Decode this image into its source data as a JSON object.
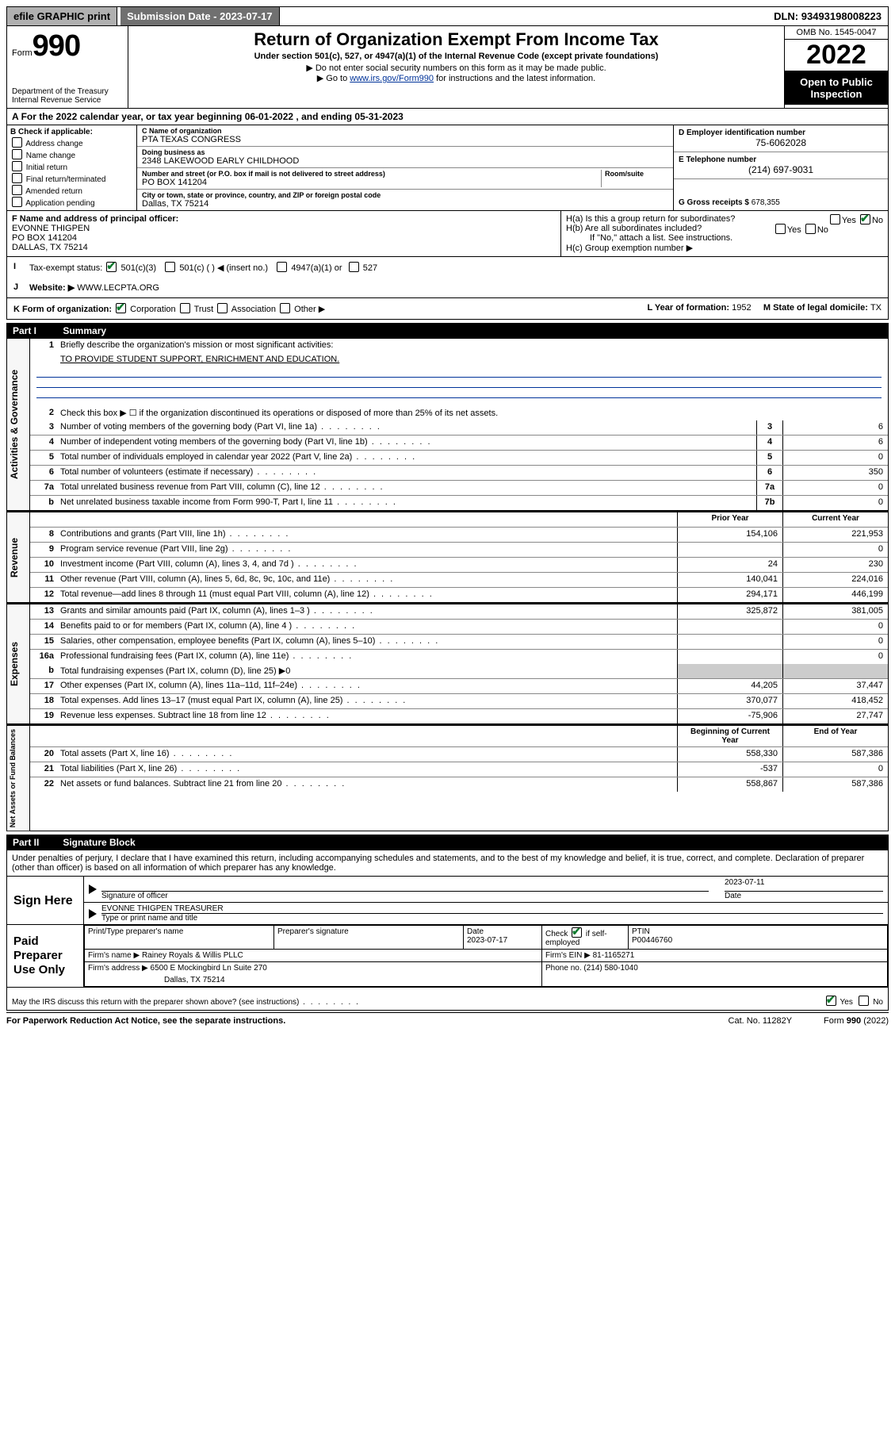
{
  "topbar": {
    "efile": "efile GRAPHIC print",
    "submission_label": "Submission Date - ",
    "submission_date": "2023-07-17",
    "dln_label": "DLN: ",
    "dln": "93493198008223"
  },
  "header": {
    "form_small": "Form",
    "form_big": "990",
    "title": "Return of Organization Exempt From Income Tax",
    "sub": "Under section 501(c), 527, or 4947(a)(1) of the Internal Revenue Code (except private foundations)",
    "info1": "▶ Do not enter social security numbers on this form as it may be made public.",
    "info2_a": "▶ Go to ",
    "info2_link": "www.irs.gov/Form990",
    "info2_b": " for instructions and the latest information.",
    "omb": "OMB No. 1545-0047",
    "year": "2022",
    "inspect": "Open to Public Inspection",
    "dept": "Department of the Treasury\nInternal Revenue Service"
  },
  "period": {
    "text_a": "For the 2022 calendar year, or tax year beginning ",
    "begin": "06-01-2022",
    "text_b": " , and ending ",
    "end": "05-31-2023"
  },
  "colB": {
    "label": "B Check if applicable:",
    "items": [
      "Address change",
      "Name change",
      "Initial return",
      "Final return/terminated",
      "Amended return",
      "Application pending"
    ]
  },
  "colC": {
    "name_lbl": "C Name of organization",
    "name": "PTA TEXAS CONGRESS",
    "dba_lbl": "Doing business as",
    "dba": "2348 LAKEWOOD EARLY CHILDHOOD",
    "street_lbl": "Number and street (or P.O. box if mail is not delivered to street address)",
    "room_lbl": "Room/suite",
    "street": "PO BOX 141204",
    "city_lbl": "City or town, state or province, country, and ZIP or foreign postal code",
    "city": "Dallas, TX  75214"
  },
  "colDE": {
    "d_lbl": "D Employer identification number",
    "d_val": "75-6062028",
    "e_lbl": "E Telephone number",
    "e_val": "(214) 697-9031",
    "g_lbl": "G Gross receipts $ ",
    "g_val": "678,355"
  },
  "rowF": {
    "lbl": "F Name and address of principal officer:",
    "name": "EVONNE THIGPEN",
    "addr1": "PO BOX 141204",
    "addr2": "DALLAS, TX  75214"
  },
  "rowH": {
    "a": "H(a)  Is this a group return for subordinates?",
    "a_yes": "Yes",
    "a_no": "No",
    "b": "H(b)  Are all subordinates included?",
    "b_yes": "Yes",
    "b_no": "No",
    "b_note": "If \"No,\" attach a list. See instructions.",
    "c": "H(c)  Group exemption number ▶"
  },
  "rowI": {
    "lbl": "Tax-exempt status:",
    "o1": "501(c)(3)",
    "o2": "501(c) (  ) ◀ (insert no.)",
    "o3": "4947(a)(1) or",
    "o4": "527"
  },
  "rowJ": {
    "lbl": "Website: ▶ ",
    "val": "WWW.LECPTA.ORG"
  },
  "rowK": {
    "lbl": "K Form of organization:",
    "o1": "Corporation",
    "o2": "Trust",
    "o3": "Association",
    "o4": "Other ▶",
    "l_lbl": "L Year of formation: ",
    "l_val": "1952",
    "m_lbl": "M State of legal domicile: ",
    "m_val": "TX"
  },
  "part1": {
    "header_part": "Part I",
    "header_title": "Summary"
  },
  "governance": {
    "side": "Activities & Governance",
    "l1": "Briefly describe the organization's mission or most significant activities:",
    "l1v": "TO PROVIDE STUDENT SUPPORT, ENRICHMENT AND EDUCATION.",
    "l2": "Check this box ▶ ☐  if the organization discontinued its operations or disposed of more than 25% of its net assets.",
    "rows": [
      {
        "n": "3",
        "d": "Number of voting members of the governing body (Part VI, line 1a)",
        "c": "3",
        "v": "6"
      },
      {
        "n": "4",
        "d": "Number of independent voting members of the governing body (Part VI, line 1b)",
        "c": "4",
        "v": "6"
      },
      {
        "n": "5",
        "d": "Total number of individuals employed in calendar year 2022 (Part V, line 2a)",
        "c": "5",
        "v": "0"
      },
      {
        "n": "6",
        "d": "Total number of volunteers (estimate if necessary)",
        "c": "6",
        "v": "350"
      },
      {
        "n": "7a",
        "d": "Total unrelated business revenue from Part VIII, column (C), line 12",
        "c": "7a",
        "v": "0"
      },
      {
        "n": "b",
        "d": "Net unrelated business taxable income from Form 990-T, Part I, line 11",
        "c": "7b",
        "v": "0"
      }
    ]
  },
  "revexp_hdr": {
    "prior": "Prior Year",
    "current": "Current Year"
  },
  "revenue": {
    "side": "Revenue",
    "rows": [
      {
        "n": "8",
        "d": "Contributions and grants (Part VIII, line 1h)",
        "p": "154,106",
        "c": "221,953"
      },
      {
        "n": "9",
        "d": "Program service revenue (Part VIII, line 2g)",
        "p": "",
        "c": "0"
      },
      {
        "n": "10",
        "d": "Investment income (Part VIII, column (A), lines 3, 4, and 7d )",
        "p": "24",
        "c": "230"
      },
      {
        "n": "11",
        "d": "Other revenue (Part VIII, column (A), lines 5, 6d, 8c, 9c, 10c, and 11e)",
        "p": "140,041",
        "c": "224,016"
      },
      {
        "n": "12",
        "d": "Total revenue—add lines 8 through 11 (must equal Part VIII, column (A), line 12)",
        "p": "294,171",
        "c": "446,199"
      }
    ]
  },
  "expenses": {
    "side": "Expenses",
    "rows": [
      {
        "n": "13",
        "d": "Grants and similar amounts paid (Part IX, column (A), lines 1–3 )",
        "p": "325,872",
        "c": "381,005"
      },
      {
        "n": "14",
        "d": "Benefits paid to or for members (Part IX, column (A), line 4 )",
        "p": "",
        "c": "0"
      },
      {
        "n": "15",
        "d": "Salaries, other compensation, employee benefits (Part IX, column (A), lines 5–10)",
        "p": "",
        "c": "0"
      },
      {
        "n": "16a",
        "d": "Professional fundraising fees (Part IX, column (A), line 11e)",
        "p": "",
        "c": "0"
      }
    ],
    "b": "Total fundraising expenses (Part IX, column (D), line 25) ▶0",
    "rows2": [
      {
        "n": "17",
        "d": "Other expenses (Part IX, column (A), lines 11a–11d, 11f–24e)",
        "p": "44,205",
        "c": "37,447"
      },
      {
        "n": "18",
        "d": "Total expenses. Add lines 13–17 (must equal Part IX, column (A), line 25)",
        "p": "370,077",
        "c": "418,452"
      },
      {
        "n": "19",
        "d": "Revenue less expenses. Subtract line 18 from line 12",
        "p": "-75,906",
        "c": "27,747"
      }
    ]
  },
  "netassets": {
    "side": "Net Assets or Fund Balances",
    "hdr_begin": "Beginning of Current Year",
    "hdr_end": "End of Year",
    "rows": [
      {
        "n": "20",
        "d": "Total assets (Part X, line 16)",
        "p": "558,330",
        "c": "587,386"
      },
      {
        "n": "21",
        "d": "Total liabilities (Part X, line 26)",
        "p": "-537",
        "c": "0"
      },
      {
        "n": "22",
        "d": "Net assets or fund balances. Subtract line 21 from line 20",
        "p": "558,867",
        "c": "587,386"
      }
    ]
  },
  "part2": {
    "header_part": "Part II",
    "header_title": "Signature Block",
    "intro": "Under penalties of perjury, I declare that I have examined this return, including accompanying schedules and statements, and to the best of my knowledge and belief, it is true, correct, and complete. Declaration of preparer (other than officer) is based on all information of which preparer has any knowledge."
  },
  "sign": {
    "here": "Sign Here",
    "sig_lbl": "Signature of officer",
    "date_lbl": "Date",
    "date": "2023-07-11",
    "name": "EVONNE THIGPEN  TREASURER",
    "name_lbl": "Type or print name and title"
  },
  "prep": {
    "here": "Paid Preparer Use Only",
    "h1": "Print/Type preparer's name",
    "h2": "Preparer's signature",
    "h3": "Date",
    "h3v": "2023-07-17",
    "h4a": "Check",
    "h4b": "if self-employed",
    "h5": "PTIN",
    "h5v": "P00446760",
    "firm_name_lbl": "Firm's name     ▶ ",
    "firm_name": "Rainey Royals & Willis PLLC",
    "firm_ein_lbl": "Firm's EIN ▶ ",
    "firm_ein": "81-1165271",
    "firm_addr_lbl": "Firm's address ▶ ",
    "firm_addr": "6500 E Mockingbird Ln Suite 270",
    "firm_addr2": "Dallas, TX  75214",
    "phone_lbl": "Phone no. ",
    "phone": "(214) 580-1040"
  },
  "irs_discuss": {
    "q": "May the IRS discuss this return with the preparer shown above? (see instructions)",
    "yes": "Yes",
    "no": "No"
  },
  "footer": {
    "left": "For Paperwork Reduction Act Notice, see the separate instructions.",
    "mid": "Cat. No. 11282Y",
    "right_a": "Form ",
    "right_b": "990",
    "right_c": " (2022)"
  }
}
